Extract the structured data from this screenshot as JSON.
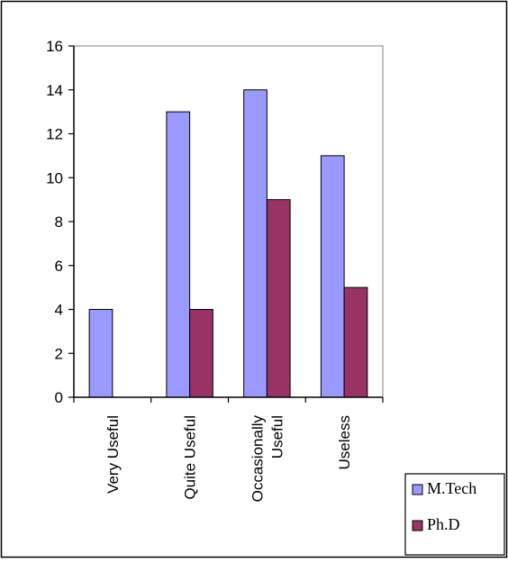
{
  "chart_data": {
    "type": "bar",
    "categories": [
      [
        "Very Useful"
      ],
      [
        "Quite Useful"
      ],
      [
        "Occasionally",
        "Useful"
      ],
      [
        "Useless"
      ]
    ],
    "series": [
      {
        "name": "M.Tech",
        "values": [
          4,
          13,
          14,
          11
        ],
        "color": "#9999ff"
      },
      {
        "name": "Ph.D",
        "values": [
          0,
          4,
          9,
          5
        ],
        "color": "#993366"
      }
    ],
    "title": "",
    "xlabel": "",
    "ylabel": "",
    "ylim": [
      0,
      16
    ],
    "yticks": [
      "0",
      "2",
      "4",
      "6",
      "8",
      "10",
      "12",
      "14",
      "16"
    ],
    "grid": false,
    "legend_position": "bottom-right"
  }
}
